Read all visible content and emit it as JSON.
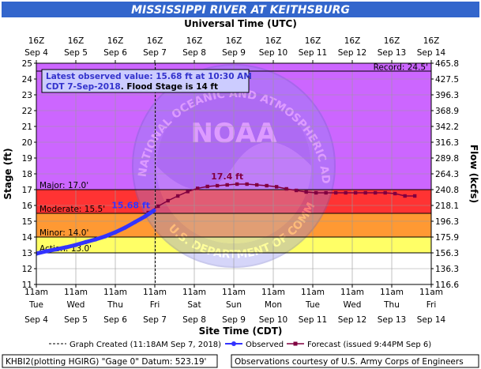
{
  "chart_data": {
    "type": "line",
    "title": "MISSISSIPPI RIVER AT KEITHSBURG",
    "top_axis_label": "Universal Time (UTC)",
    "xlabel": "Site Time (CDT)",
    "ylabel": "Stage (ft)",
    "y2label": "Flow (kcfs)",
    "ylim": [
      11,
      25
    ],
    "xlim": [
      "2018-09-04 11:00",
      "2018-09-14 11:00"
    ],
    "y_ticks": [
      11,
      12,
      13,
      14,
      15,
      16,
      17,
      18,
      19,
      20,
      21,
      22,
      23,
      24,
      25
    ],
    "y2_ticks": [
      {
        "stage": 11,
        "label": "116.6"
      },
      {
        "stage": 12,
        "label": "136.3"
      },
      {
        "stage": 13,
        "label": "156.3"
      },
      {
        "stage": 14,
        "label": "175.9"
      },
      {
        "stage": 15,
        "label": "196.3"
      },
      {
        "stage": 16,
        "label": "218.1"
      },
      {
        "stage": 17,
        "label": "240.8"
      },
      {
        "stage": 18,
        "label": "264.3"
      },
      {
        "stage": 19,
        "label": "289.8"
      },
      {
        "stage": 20,
        "label": "316.3"
      },
      {
        "stage": 21,
        "label": "342.2"
      },
      {
        "stage": 22,
        "label": "368.9"
      },
      {
        "stage": 23,
        "label": "396.3"
      },
      {
        "stage": 24,
        "label": "427.5"
      },
      {
        "stage": 25,
        "label": "465.8"
      }
    ],
    "bottom_ticks": [
      {
        "time": "11am",
        "day": "Tue",
        "date": "Sep 4"
      },
      {
        "time": "11am",
        "day": "Wed",
        "date": "Sep 5"
      },
      {
        "time": "11am",
        "day": "Thu",
        "date": "Sep 6"
      },
      {
        "time": "11am",
        "day": "Fri",
        "date": "Sep 7"
      },
      {
        "time": "11am",
        "day": "Sat",
        "date": "Sep 8"
      },
      {
        "time": "11am",
        "day": "Sun",
        "date": "Sep 9"
      },
      {
        "time": "11am",
        "day": "Mon",
        "date": "Sep 10"
      },
      {
        "time": "11am",
        "day": "Tue",
        "date": "Sep 11"
      },
      {
        "time": "11am",
        "day": "Wed",
        "date": "Sep 12"
      },
      {
        "time": "11am",
        "day": "Thu",
        "date": "Sep 13"
      },
      {
        "time": "11am",
        "day": "Fri",
        "date": "Sep 14"
      }
    ],
    "top_ticks": [
      {
        "time": "16Z",
        "date": "Sep 4"
      },
      {
        "time": "16Z",
        "date": "Sep 5"
      },
      {
        "time": "16Z",
        "date": "Sep 6"
      },
      {
        "time": "16Z",
        "date": "Sep 7"
      },
      {
        "time": "16Z",
        "date": "Sep 8"
      },
      {
        "time": "16Z",
        "date": "Sep 9"
      },
      {
        "time": "16Z",
        "date": "Sep 10"
      },
      {
        "time": "16Z",
        "date": "Sep 11"
      },
      {
        "time": "16Z",
        "date": "Sep 12"
      },
      {
        "time": "16Z",
        "date": "Sep 13"
      },
      {
        "time": "16Z",
        "date": "Sep 14"
      }
    ],
    "flood_categories": [
      {
        "name": "Record",
        "label": "Record: 24.5'",
        "stage": 24.5
      },
      {
        "name": "Major",
        "label": "Major: 17.0'",
        "stage": 17.0,
        "color": "#cc66ff"
      },
      {
        "name": "Moderate",
        "label": "Moderate: 15.5'",
        "stage": 15.5,
        "color": "#ff3333"
      },
      {
        "name": "Minor",
        "label": "Minor: 14.0'",
        "stage": 14.0,
        "color": "#ff9933"
      },
      {
        "name": "Action",
        "label": "Action: 13.0'",
        "stage": 13.0,
        "color": "#ffff66"
      }
    ],
    "annotation": {
      "line1": "Latest observed value: 15.68 ft at 10:30 AM",
      "line2_a": "CDT 7-Sep-2018",
      "line2_b": ". Flood Stage is 14 ft"
    },
    "observed_label": "15.68 ft",
    "crest_label": "17.4 ft",
    "series": [
      {
        "name": "Observed",
        "color": "#3333ff",
        "points": [
          [
            "2018-09-04 11:00",
            12.95
          ],
          [
            "2018-09-04 17:00",
            13.1
          ],
          [
            "2018-09-04 23:00",
            13.22
          ],
          [
            "2018-09-05 05:00",
            13.35
          ],
          [
            "2018-09-05 11:00",
            13.5
          ],
          [
            "2018-09-05 17:00",
            13.68
          ],
          [
            "2018-09-05 23:00",
            13.85
          ],
          [
            "2018-09-06 05:00",
            14.05
          ],
          [
            "2018-09-06 11:00",
            14.3
          ],
          [
            "2018-09-06 17:00",
            14.6
          ],
          [
            "2018-09-06 23:00",
            14.95
          ],
          [
            "2018-09-07 05:00",
            15.3
          ],
          [
            "2018-09-07 10:30",
            15.68
          ]
        ]
      },
      {
        "name": "Forecast",
        "color": "#800040",
        "points": [
          [
            "2018-09-07 07:00",
            15.55
          ],
          [
            "2018-09-07 13:00",
            15.95
          ],
          [
            "2018-09-07 19:00",
            16.3
          ],
          [
            "2018-09-08 01:00",
            16.6
          ],
          [
            "2018-09-08 07:00",
            16.88
          ],
          [
            "2018-09-08 13:00",
            17.08
          ],
          [
            "2018-09-08 19:00",
            17.2
          ],
          [
            "2018-09-09 01:00",
            17.25
          ],
          [
            "2018-09-09 07:00",
            17.3
          ],
          [
            "2018-09-09 13:00",
            17.35
          ],
          [
            "2018-09-09 19:00",
            17.35
          ],
          [
            "2018-09-10 01:00",
            17.3
          ],
          [
            "2018-09-10 07:00",
            17.25
          ],
          [
            "2018-09-10 13:00",
            17.18
          ],
          [
            "2018-09-10 19:00",
            17.05
          ],
          [
            "2018-09-11 01:00",
            16.95
          ],
          [
            "2018-09-11 07:00",
            16.85
          ],
          [
            "2018-09-11 13:00",
            16.8
          ],
          [
            "2018-09-11 19:00",
            16.8
          ],
          [
            "2018-09-12 01:00",
            16.8
          ],
          [
            "2018-09-12 07:00",
            16.8
          ],
          [
            "2018-09-12 13:00",
            16.8
          ],
          [
            "2018-09-12 19:00",
            16.8
          ],
          [
            "2018-09-13 01:00",
            16.8
          ],
          [
            "2018-09-13 07:00",
            16.8
          ],
          [
            "2018-09-13 13:00",
            16.75
          ],
          [
            "2018-09-13 19:00",
            16.6
          ],
          [
            "2018-09-14 01:00",
            16.6
          ]
        ]
      }
    ],
    "graph_created_time": "2018-09-07 11:18",
    "watermark_words": {
      "logo_text": "NOAA",
      "left_arc": "NATIONAL OCEANIC",
      "right_arc": "AND ATMOSPHERIC ADMINISTRATION",
      "bottom_arc": "U.S. DEPARTMENT OF COMMERCE"
    }
  },
  "legend": {
    "graph_created": "Graph Created (11:18AM Sep 7, 2018)",
    "observed": "Observed",
    "forecast": "Forecast (issued 9:44PM Sep 6)"
  },
  "footer": {
    "left": "KHBI2(plotting HGIRG) \"Gage 0\" Datum: 523.19'",
    "right": "Observations courtesy of U.S. Army Corps of Engineers"
  },
  "colors": {
    "title_bar": "#3366cc",
    "plot_top": "#cc66ff",
    "observed": "#3333ff",
    "forecast": "#800040"
  }
}
